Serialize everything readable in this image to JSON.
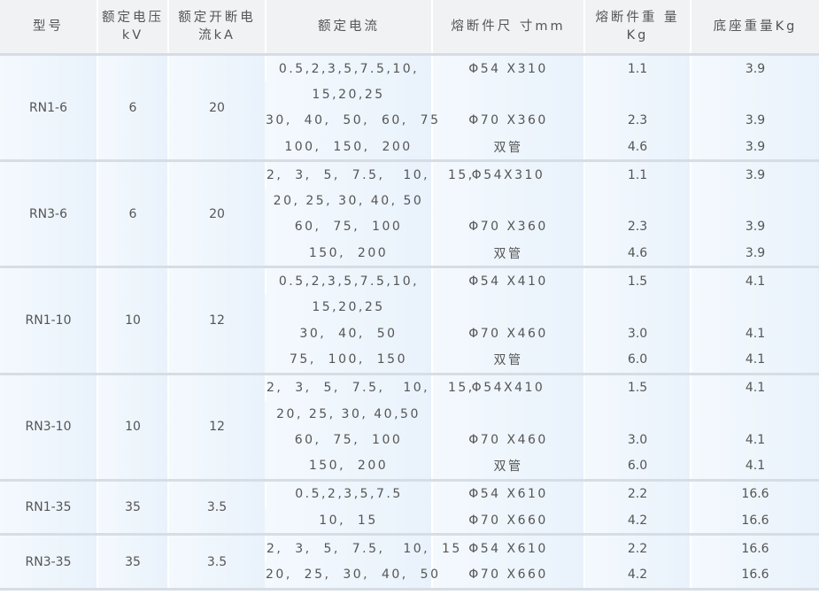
{
  "header": [
    "型号",
    "额定电压kV",
    "额定开断电流kA",
    "额定电流",
    "熔断件尺 寸mm",
    "熔断件重 量Kg",
    "底座重量Kg"
  ],
  "groups": [
    {
      "model": "RN1-6",
      "voltage": "6",
      "breaking": "20",
      "lines": [
        [
          "0.5,2,3,5,7.5,10,",
          "Φ54 X310",
          "1.1",
          "3.9"
        ],
        [
          "15,20,25",
          "",
          "",
          ""
        ],
        [
          "30,  40,  50,  60,  75",
          "Φ70 X360",
          "2.3",
          "3.9"
        ],
        [
          "100,  150,  200",
          "双管",
          "4.6",
          "3.9"
        ]
      ]
    },
    {
      "model": "RN3-6",
      "voltage": "6",
      "breaking": "20",
      "lines": [
        [
          "2,  3,  5,  7.5,   10,   15,",
          "Φ54X310",
          "1.1",
          "3.9"
        ],
        [
          "20, 25, 30, 40, 50",
          "",
          "",
          ""
        ],
        [
          "60,  75,  100",
          "Φ70 X360",
          "2.3",
          "3.9"
        ],
        [
          "150,  200",
          "双管",
          "4.6",
          "3.9"
        ]
      ]
    },
    {
      "model": "RN1-10",
      "voltage": "10",
      "breaking": "12",
      "lines": [
        [
          "0.5,2,3,5,7.5,10,",
          "Φ54 X410",
          "1.5",
          "4.1"
        ],
        [
          "15,20,25",
          "",
          "",
          ""
        ],
        [
          "30,  40,  50",
          "Φ70 X460",
          "3.0",
          "4.1"
        ],
        [
          "75,  100,  150",
          "双管",
          "6.0",
          "4.1"
        ]
      ]
    },
    {
      "model": "RN3-10",
      "voltage": "10",
      "breaking": "12",
      "lines": [
        [
          "2,  3,  5,  7.5,   10,   15,",
          "Φ54X410",
          "1.5",
          "4.1"
        ],
        [
          "20, 25, 30, 40,50",
          "",
          "",
          ""
        ],
        [
          "60,  75,  100",
          "Φ70 X460",
          "3.0",
          "4.1"
        ],
        [
          "150,  200",
          "双管",
          "6.0",
          "4.1"
        ]
      ]
    },
    {
      "model": "RN1-35",
      "voltage": "35",
      "breaking": "3.5",
      "lines": [
        [
          "0.5,2,3,5,7.5",
          "Φ54 X610",
          "2.2",
          "16.6"
        ],
        [
          "10,  15",
          "Φ70 X660",
          "4.2",
          "16.6"
        ]
      ]
    },
    {
      "model": "RN3-35",
      "voltage": "35",
      "breaking": "3.5",
      "lines": [
        [
          "2,  3,  5,  7.5,   10,  15",
          "Φ54 X610",
          "2.2",
          "16.6"
        ],
        [
          "20,  25,  30,  40,  50",
          "Φ70 X660",
          "4.2",
          "16.6"
        ]
      ]
    }
  ]
}
